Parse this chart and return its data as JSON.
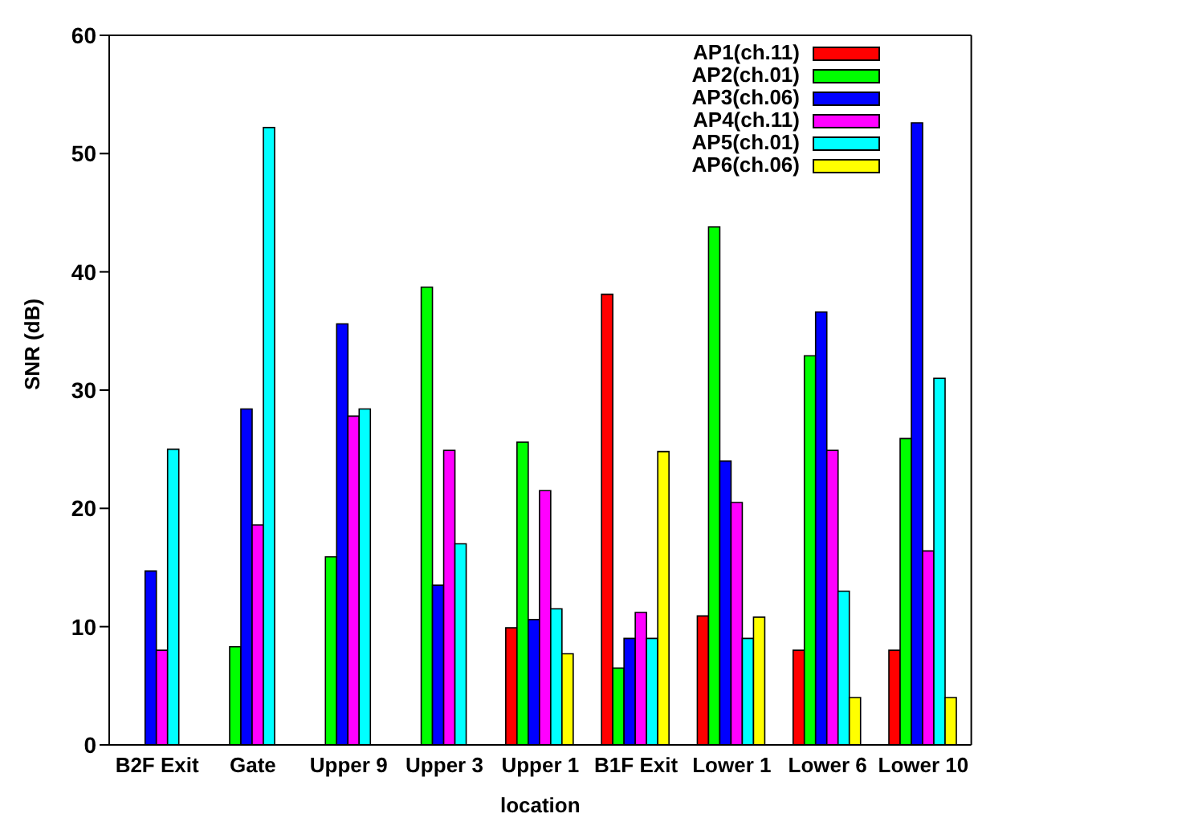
{
  "chart_data": {
    "type": "bar",
    "xlabel": "location",
    "ylabel": "SNR (dB)",
    "categories": [
      "B2F Exit",
      "Gate",
      "Upper 9",
      "Upper 3",
      "Upper 1",
      "B1F Exit",
      "Lower 1",
      "Lower 6",
      "Lower 10"
    ],
    "series": [
      {
        "name": "AP1(ch.11)",
        "color": "#ff0000",
        "values": [
          0,
          0,
          0,
          0,
          9.9,
          38.1,
          10.9,
          8,
          8
        ]
      },
      {
        "name": "AP2(ch.01)",
        "color": "#00ff00",
        "values": [
          0,
          8.3,
          15.9,
          38.7,
          25.6,
          6.5,
          43.8,
          32.9,
          25.9
        ]
      },
      {
        "name": "AP3(ch.06)",
        "color": "#0000ff",
        "values": [
          14.7,
          28.4,
          35.6,
          13.5,
          10.6,
          9,
          24,
          36.6,
          52.6
        ]
      },
      {
        "name": "AP4(ch.11)",
        "color": "#ff00ff",
        "values": [
          8,
          18.6,
          27.8,
          24.9,
          21.5,
          11.2,
          20.5,
          24.9,
          16.4
        ]
      },
      {
        "name": "AP5(ch.01)",
        "color": "#00ffff",
        "values": [
          25,
          52.2,
          28.4,
          17,
          11.5,
          9,
          9,
          13,
          31
        ]
      },
      {
        "name": "AP6(ch.06)",
        "color": "#ffff00",
        "values": [
          0,
          0,
          0,
          0,
          7.7,
          24.8,
          10.8,
          4,
          4
        ]
      }
    ],
    "ylim": [
      0,
      60
    ],
    "yticks": [
      0,
      10,
      20,
      30,
      40,
      50,
      60
    ],
    "grid": false,
    "legend": "top right"
  }
}
